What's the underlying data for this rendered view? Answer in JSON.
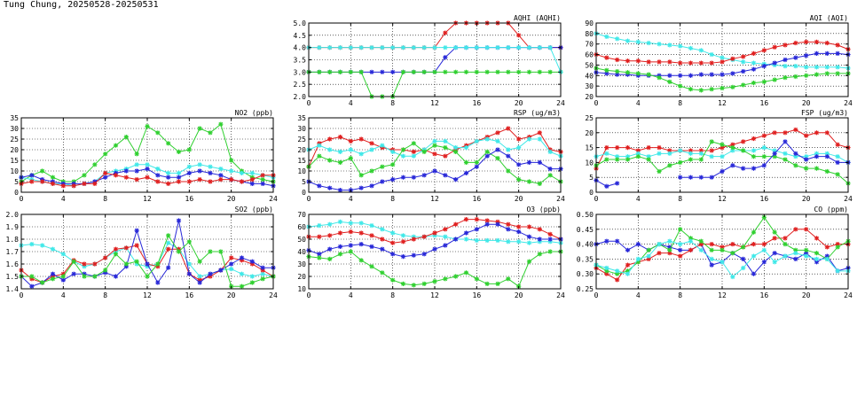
{
  "page": {
    "title": "Tung Chung, 20250528-20250531"
  },
  "colors": {
    "red": "#e02020",
    "blue": "#2828d8",
    "green": "#30d030",
    "cyan": "#40e8e8",
    "grid": "#000000"
  },
  "chart_data": [
    {
      "id": "aqhi",
      "type": "line",
      "title": "AQHI (AQHI)",
      "xlim": [
        0,
        24
      ],
      "xticks": [
        0,
        4,
        8,
        12,
        16,
        20,
        24
      ],
      "ylim": [
        2.0,
        5.0
      ],
      "yticks": [
        2.0,
        2.5,
        3.0,
        3.5,
        4.0,
        4.5,
        5.0
      ],
      "ytick_decimals": 1,
      "grid": true,
      "series": [
        {
          "color": "red",
          "values": [
            4,
            4,
            4,
            4,
            4,
            4,
            4,
            4,
            4,
            4,
            4,
            4,
            4,
            4.6,
            5,
            5,
            5,
            5,
            5,
            5,
            4.5,
            4,
            4,
            4,
            4
          ]
        },
        {
          "color": "blue",
          "values": [
            3,
            3,
            3,
            3,
            3,
            3,
            3,
            3,
            3,
            3,
            3,
            3,
            3,
            3.6,
            4,
            4,
            4,
            4,
            4,
            4,
            4,
            4,
            4,
            4,
            4
          ]
        },
        {
          "color": "green",
          "values": [
            3,
            3,
            3,
            3,
            3,
            3,
            2,
            2,
            2,
            3,
            3,
            3,
            3,
            3,
            3,
            3,
            3,
            3,
            3,
            3,
            3,
            3,
            3,
            3,
            3
          ]
        },
        {
          "color": "cyan",
          "values": [
            4,
            4,
            4,
            4,
            4,
            4,
            4,
            4,
            4,
            4,
            4,
            4,
            4,
            4,
            4,
            4,
            4,
            4,
            4,
            4,
            4,
            4,
            4,
            4,
            3
          ]
        }
      ]
    },
    {
      "id": "aqi",
      "type": "line",
      "title": "AQI (AQI)",
      "xlim": [
        0,
        24
      ],
      "xticks": [
        0,
        4,
        8,
        12,
        16,
        20,
        24
      ],
      "ylim": [
        20,
        90
      ],
      "yticks": [
        20,
        30,
        40,
        50,
        60,
        70,
        80,
        90
      ],
      "ytick_decimals": 0,
      "grid": true,
      "series": [
        {
          "color": "cyan",
          "values": [
            80,
            77,
            75,
            73,
            72,
            71,
            70,
            69,
            68,
            66,
            64,
            60,
            57,
            55,
            53,
            52,
            51,
            50,
            49,
            49,
            48,
            48,
            48,
            48,
            47
          ]
        },
        {
          "color": "red",
          "values": [
            60,
            57,
            55,
            54,
            54,
            53,
            53,
            53,
            52,
            52,
            52,
            52,
            53,
            56,
            58,
            61,
            64,
            67,
            69,
            71,
            72,
            72,
            71,
            69,
            65
          ]
        },
        {
          "color": "blue",
          "values": [
            43,
            42,
            41,
            41,
            40,
            40,
            40,
            40,
            40,
            40,
            41,
            41,
            41,
            42,
            44,
            46,
            49,
            52,
            55,
            57,
            59,
            61,
            61,
            61,
            60
          ]
        },
        {
          "color": "green",
          "values": [
            47,
            45,
            44,
            43,
            42,
            41,
            38,
            34,
            30,
            27,
            26,
            27,
            28,
            29,
            31,
            33,
            34,
            36,
            38,
            39,
            40,
            41,
            42,
            42,
            42
          ]
        }
      ]
    },
    {
      "id": "no2",
      "type": "line",
      "title": "NO2 (ppb)",
      "xlim": [
        0,
        24
      ],
      "xticks": [
        0,
        4,
        8,
        12,
        16,
        20,
        24
      ],
      "ylim": [
        0,
        35
      ],
      "yticks": [
        0,
        5,
        10,
        15,
        20,
        25,
        30,
        35
      ],
      "ytick_decimals": 0,
      "grid": true,
      "series": [
        {
          "color": "green",
          "values": [
            5,
            8,
            10,
            7,
            5,
            5,
            8,
            13,
            18,
            22,
            26,
            18,
            31,
            28,
            23,
            19,
            20,
            30,
            28,
            32,
            15,
            10,
            7,
            6,
            5
          ]
        },
        {
          "color": "cyan",
          "values": [
            7,
            6,
            5,
            4,
            4,
            3,
            4,
            5,
            9,
            10,
            11,
            13,
            13,
            11,
            9,
            9,
            12,
            13,
            12,
            11,
            10,
            9,
            9,
            8,
            7
          ]
        },
        {
          "color": "blue",
          "values": [
            7,
            8,
            6,
            5,
            4,
            4,
            4,
            5,
            7,
            9,
            10,
            10,
            11,
            8,
            7,
            7,
            9,
            10,
            9,
            8,
            6,
            5,
            4,
            4,
            3
          ]
        },
        {
          "color": "red",
          "values": [
            4,
            5,
            5,
            4,
            3,
            3,
            4,
            4,
            9,
            8,
            7,
            6,
            7,
            5,
            4,
            5,
            5,
            6,
            5,
            6,
            6,
            5,
            6,
            8,
            8
          ]
        }
      ]
    },
    {
      "id": "rsp",
      "type": "line",
      "title": "RSP (ug/m3)",
      "xlim": [
        0,
        24
      ],
      "xticks": [
        0,
        4,
        8,
        12,
        16,
        20,
        24
      ],
      "ylim": [
        0,
        35
      ],
      "yticks": [
        0,
        5,
        10,
        15,
        20,
        25,
        30,
        35
      ],
      "ytick_decimals": 0,
      "grid": true,
      "series": [
        {
          "color": "red",
          "values": [
            12,
            23,
            25,
            26,
            24,
            25,
            23,
            21,
            20,
            20,
            19,
            20,
            18,
            17,
            20,
            22,
            24,
            26,
            28,
            30,
            25,
            26,
            28,
            20,
            19
          ]
        },
        {
          "color": "cyan",
          "values": [
            20,
            22,
            20,
            19,
            20,
            18,
            20,
            22,
            19,
            17,
            17,
            20,
            24,
            24,
            21,
            21,
            24,
            25,
            24,
            20,
            21,
            25,
            25,
            19,
            17
          ]
        },
        {
          "color": "green",
          "values": [
            12,
            17,
            15,
            14,
            16,
            8,
            10,
            12,
            13,
            20,
            23,
            19,
            22,
            21,
            19,
            14,
            14,
            19,
            16,
            10,
            6,
            5,
            4,
            8,
            5
          ]
        },
        {
          "color": "blue",
          "values": [
            5,
            3,
            2,
            1,
            1,
            2,
            3,
            5,
            6,
            7,
            7,
            8,
            10,
            8,
            6,
            9,
            12,
            17,
            20,
            17,
            13,
            14,
            14,
            11,
            11
          ]
        }
      ]
    },
    {
      "id": "fsp",
      "type": "line",
      "title": "FSP (ug/m3)",
      "xlim": [
        0,
        24
      ],
      "xticks": [
        0,
        4,
        8,
        12,
        16,
        20,
        24
      ],
      "ylim": [
        0,
        25
      ],
      "yticks": [
        0,
        5,
        10,
        15,
        20,
        25
      ],
      "ytick_decimals": 0,
      "grid": true,
      "series": [
        {
          "color": "red",
          "values": [
            8,
            15,
            15,
            15,
            14,
            15,
            15,
            14,
            14,
            14,
            14,
            14,
            15,
            16,
            17,
            18,
            19,
            20,
            20,
            21,
            19,
            20,
            20,
            16,
            15
          ]
        },
        {
          "color": "cyan",
          "values": [
            12,
            13,
            12,
            12,
            13,
            12,
            13,
            13,
            14,
            13,
            13,
            12,
            12,
            14,
            14,
            14,
            15,
            14,
            13,
            12,
            12,
            13,
            13,
            12,
            10
          ]
        },
        {
          "color": "green",
          "values": [
            9,
            11,
            11,
            11,
            12,
            11,
            7,
            9,
            10,
            11,
            11,
            17,
            16,
            15,
            14,
            12,
            12,
            12,
            11,
            9,
            8,
            8,
            7,
            6,
            3
          ]
        },
        {
          "color": "blue",
          "values": [
            4,
            2,
            3,
            null,
            null,
            null,
            null,
            null,
            5,
            5,
            5,
            5,
            7,
            9,
            8,
            8,
            9,
            13,
            17,
            13,
            11,
            12,
            12,
            10,
            10
          ]
        }
      ]
    },
    {
      "id": "so2",
      "type": "line",
      "title": "SO2 (ppb)",
      "xlim": [
        0,
        24
      ],
      "xticks": [
        0,
        4,
        8,
        12,
        16,
        20,
        24
      ],
      "ylim": [
        1.4,
        2.0
      ],
      "yticks": [
        1.4,
        1.5,
        1.6,
        1.7,
        1.8,
        1.9,
        2.0
      ],
      "ytick_decimals": 1,
      "grid": true,
      "series": [
        {
          "color": "cyan",
          "values": [
            1.75,
            1.76,
            1.75,
            1.72,
            1.68,
            1.62,
            1.58,
            1.6,
            1.65,
            1.7,
            1.73,
            1.6,
            1.58,
            1.6,
            1.77,
            1.72,
            1.6,
            1.5,
            1.52,
            1.55,
            1.56,
            1.52,
            1.5,
            1.52,
            1.5
          ]
        },
        {
          "color": "red",
          "values": [
            1.55,
            1.48,
            1.45,
            1.5,
            1.52,
            1.63,
            1.6,
            1.6,
            1.65,
            1.72,
            1.73,
            1.75,
            1.6,
            1.58,
            1.72,
            1.72,
            1.52,
            1.47,
            1.5,
            1.55,
            1.65,
            1.63,
            1.6,
            1.55,
            1.5
          ]
        },
        {
          "color": "blue",
          "values": [
            1.5,
            1.42,
            1.45,
            1.52,
            1.47,
            1.52,
            1.52,
            1.5,
            1.53,
            1.5,
            1.58,
            1.87,
            1.6,
            1.45,
            1.57,
            1.95,
            1.52,
            1.45,
            1.52,
            1.55,
            1.6,
            1.65,
            1.62,
            1.57,
            1.57
          ]
        },
        {
          "color": "green",
          "values": [
            1.5,
            1.5,
            1.45,
            1.48,
            1.5,
            1.62,
            1.5,
            1.5,
            1.55,
            1.68,
            1.6,
            1.62,
            1.5,
            1.6,
            1.83,
            1.7,
            1.78,
            1.62,
            1.7,
            1.7,
            1.42,
            1.42,
            1.45,
            1.48,
            1.5
          ]
        }
      ]
    },
    {
      "id": "o3",
      "type": "line",
      "title": "O3 (ppb)",
      "xlim": [
        0,
        24
      ],
      "xticks": [
        0,
        4,
        8,
        12,
        16,
        20,
        24
      ],
      "ylim": [
        10,
        70
      ],
      "yticks": [
        10,
        20,
        30,
        40,
        50,
        60,
        70
      ],
      "ytick_decimals": 0,
      "grid": true,
      "series": [
        {
          "color": "cyan",
          "values": [
            60,
            61,
            62,
            64,
            63,
            63,
            61,
            58,
            55,
            53,
            52,
            52,
            53,
            52,
            50,
            50,
            49,
            49,
            49,
            48,
            48,
            47,
            48,
            48,
            47
          ]
        },
        {
          "color": "red",
          "values": [
            52,
            52,
            53,
            55,
            56,
            55,
            53,
            50,
            47,
            48,
            50,
            52,
            55,
            58,
            62,
            66,
            66,
            65,
            64,
            62,
            60,
            60,
            58,
            54,
            50
          ]
        },
        {
          "color": "blue",
          "values": [
            41,
            38,
            42,
            44,
            45,
            46,
            44,
            42,
            38,
            36,
            37,
            38,
            42,
            45,
            50,
            55,
            58,
            62,
            62,
            58,
            56,
            52,
            50,
            50,
            50
          ]
        },
        {
          "color": "green",
          "values": [
            36,
            35,
            34,
            38,
            40,
            33,
            28,
            23,
            17,
            14,
            13,
            14,
            16,
            18,
            20,
            23,
            18,
            14,
            14,
            18,
            12,
            32,
            38,
            40,
            40
          ]
        }
      ]
    },
    {
      "id": "co",
      "type": "line",
      "title": "CO (ppm)",
      "xlim": [
        0,
        24
      ],
      "xticks": [
        0,
        4,
        8,
        12,
        16,
        20,
        24
      ],
      "ylim": [
        0.25,
        0.5
      ],
      "yticks": [
        0.25,
        0.3,
        0.35,
        0.4,
        0.45,
        0.5
      ],
      "ytick_decimals": 2,
      "grid": true,
      "series": [
        {
          "color": "blue",
          "values": [
            0.4,
            0.41,
            0.41,
            0.38,
            0.4,
            0.38,
            0.4,
            0.39,
            0.38,
            0.38,
            0.4,
            0.33,
            0.34,
            0.37,
            0.35,
            0.3,
            0.34,
            0.37,
            0.36,
            0.35,
            0.37,
            0.34,
            0.36,
            0.31,
            0.32
          ]
        },
        {
          "color": "red",
          "values": [
            0.32,
            0.3,
            0.28,
            0.33,
            0.34,
            0.35,
            0.37,
            0.37,
            0.36,
            0.38,
            0.4,
            0.4,
            0.39,
            0.4,
            0.39,
            0.4,
            0.4,
            0.42,
            0.42,
            0.45,
            0.45,
            0.42,
            0.39,
            0.4,
            0.4
          ]
        },
        {
          "color": "green",
          "values": [
            0.33,
            0.31,
            0.3,
            0.31,
            0.34,
            0.38,
            0.4,
            0.38,
            0.45,
            0.42,
            0.41,
            0.38,
            0.38,
            0.37,
            0.39,
            0.44,
            0.49,
            0.44,
            0.4,
            0.38,
            0.38,
            0.37,
            0.35,
            0.39,
            0.41
          ]
        },
        {
          "color": "cyan",
          "values": [
            0.33,
            0.32,
            0.31,
            0.3,
            0.35,
            0.36,
            0.4,
            0.41,
            0.4,
            0.41,
            0.38,
            0.35,
            0.34,
            0.29,
            0.32,
            0.36,
            0.38,
            0.34,
            0.36,
            0.37,
            0.36,
            0.35,
            0.35,
            0.31,
            0.31
          ]
        }
      ]
    }
  ]
}
